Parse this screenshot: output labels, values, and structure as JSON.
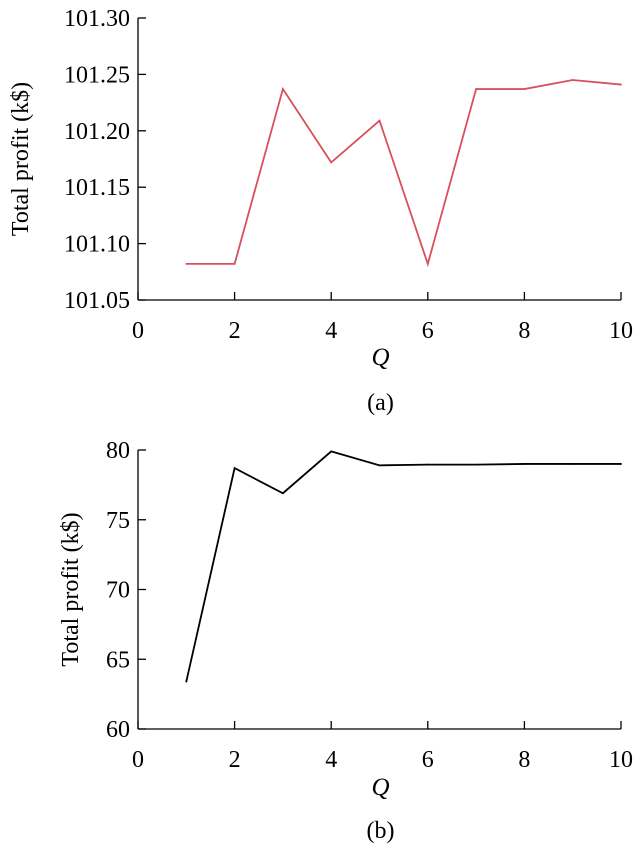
{
  "chart_data": [
    {
      "type": "line",
      "caption": "(a)",
      "xlabel": "Q",
      "ylabel": "Total profit (k$)",
      "xlim": [
        0,
        10
      ],
      "ylim": [
        101.05,
        101.3
      ],
      "xticks": [
        0,
        2,
        4,
        6,
        8,
        10
      ],
      "yticks": [
        101.05,
        101.1,
        101.15,
        101.2,
        101.25,
        101.3
      ],
      "ytick_labels": [
        "101.05",
        "101.10",
        "101.15",
        "101.20",
        "101.25",
        "101.30"
      ],
      "grid": false,
      "series": [
        {
          "color": "#d9505a",
          "x": [
            1,
            2,
            3,
            4,
            5,
            6,
            7,
            8,
            9,
            10
          ],
          "values": [
            101.082,
            101.082,
            101.237,
            101.172,
            101.209,
            101.082,
            101.237,
            101.237,
            101.245,
            101.241
          ]
        }
      ]
    },
    {
      "type": "line",
      "caption": "(b)",
      "xlabel": "Q",
      "ylabel": "Total profit (k$)",
      "xlim": [
        0,
        10
      ],
      "ylim": [
        60,
        80
      ],
      "xticks": [
        0,
        2,
        4,
        6,
        8,
        10
      ],
      "yticks": [
        60,
        65,
        70,
        75,
        80
      ],
      "ytick_labels": [
        "60",
        "65",
        "70",
        "75",
        "80"
      ],
      "grid": false,
      "series": [
        {
          "color": "#000000",
          "x": [
            1,
            2,
            3,
            4,
            5,
            6,
            7,
            8,
            9,
            10
          ],
          "values": [
            63.4,
            78.7,
            76.9,
            79.9,
            78.9,
            78.95,
            78.95,
            79.0,
            79.0,
            79.0
          ]
        }
      ]
    }
  ]
}
